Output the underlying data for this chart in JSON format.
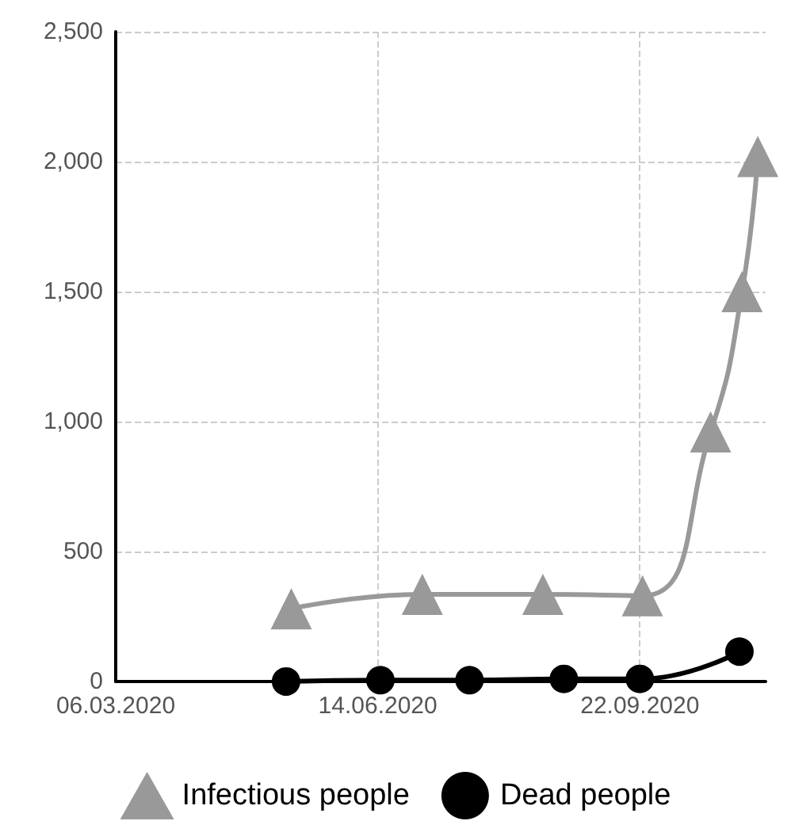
{
  "chart_data": {
    "type": "line",
    "xlim": [
      "2020-03-06",
      "2020-11-09"
    ],
    "xticks": [
      {
        "value": "2020-03-06",
        "label": "06.03.2020"
      },
      {
        "value": "2020-06-14",
        "label": "14.06.2020"
      },
      {
        "value": "2020-09-22",
        "label": "22.09.2020"
      }
    ],
    "ylim": [
      0,
      2500
    ],
    "yticks": [
      {
        "value": 0,
        "label": "0"
      },
      {
        "value": 500,
        "label": "500"
      },
      {
        "value": 1000,
        "label": "1,000"
      },
      {
        "value": 1500,
        "label": "1,500"
      },
      {
        "value": 2000,
        "label": "2,000"
      },
      {
        "value": 2500,
        "label": "2,500"
      }
    ],
    "grid": true,
    "legend": "bottom",
    "series": [
      {
        "name": "Infectious people",
        "color": "#999999",
        "marker": "triangle",
        "x": [
          "2020-05-12",
          "2020-07-01",
          "2020-08-16",
          "2020-09-23",
          "2020-10-19",
          "2020-10-31",
          "2020-11-06"
        ],
        "values": [
          280,
          335,
          335,
          330,
          960,
          1500,
          2020
        ]
      },
      {
        "name": "Dead people",
        "color": "#000000",
        "marker": "circle",
        "x": [
          "2020-05-10",
          "2020-06-15",
          "2020-07-19",
          "2020-08-24",
          "2020-09-22",
          "2020-10-30"
        ],
        "values": [
          0,
          5,
          5,
          10,
          10,
          115
        ]
      }
    ]
  }
}
